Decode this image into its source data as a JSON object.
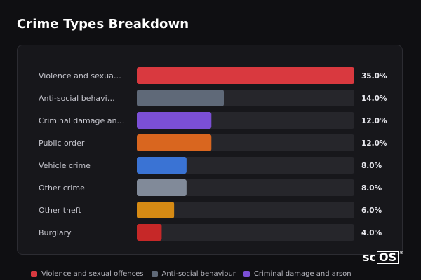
{
  "title": "Crime Types Breakdown",
  "chart_data": {
    "type": "bar",
    "orientation": "horizontal",
    "title": "Crime Types Breakdown",
    "xlim": [
      0,
      35
    ],
    "grid": false,
    "legend_position": "bottom",
    "categories": [
      {
        "label": "Violence and sexua…",
        "full_name": "Violence and sexual offences",
        "value": 35.0,
        "value_label": "35.0%",
        "color": "#d9393f"
      },
      {
        "label": "Anti-social behavi…",
        "full_name": "Anti-social behaviour",
        "value": 14.0,
        "value_label": "14.0%",
        "color": "#5f6978"
      },
      {
        "label": "Criminal damage an…",
        "full_name": "Criminal damage and arson",
        "value": 12.0,
        "value_label": "12.0%",
        "color": "#7b4fd6"
      },
      {
        "label": "Public order",
        "full_name": "Public order",
        "value": 12.0,
        "value_label": "12.0%",
        "color": "#d9661f"
      },
      {
        "label": "Vehicle crime",
        "full_name": "Vehicle crime",
        "value": 8.0,
        "value_label": "8.0%",
        "color": "#3a73d4"
      },
      {
        "label": "Other crime",
        "full_name": "Other crime",
        "value": 8.0,
        "value_label": "8.0%",
        "color": "#818a99"
      },
      {
        "label": "Other theft",
        "full_name": "Other theft",
        "value": 6.0,
        "value_label": "6.0%",
        "color": "#d68a14"
      },
      {
        "label": "Burglary",
        "full_name": "Burglary",
        "value": 4.0,
        "value_label": "4.0%",
        "color": "#c62828"
      }
    ],
    "legend": [
      {
        "label": "Violence and sexual offences",
        "color": "#d9393f"
      },
      {
        "label": "Anti-social behaviour",
        "color": "#5f6978"
      },
      {
        "label": "Criminal damage and arson",
        "color": "#7b4fd6"
      }
    ],
    "track_color": "#26262b"
  },
  "logo": {
    "brand": "scOS",
    "sc": "sc",
    "os": "OS",
    "reg": "®"
  }
}
